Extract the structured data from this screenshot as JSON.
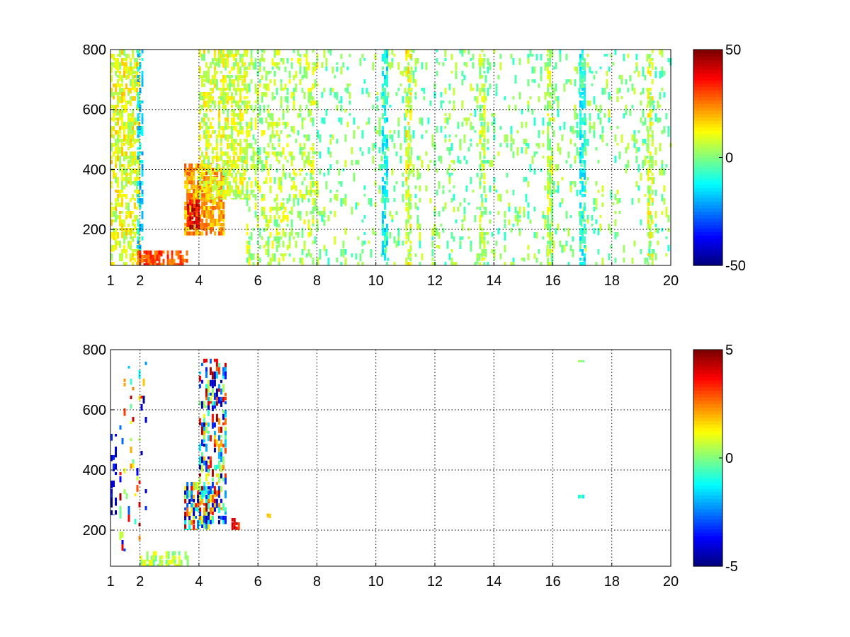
{
  "chart_data": [
    {
      "type": "heatmap",
      "title": "",
      "xlabel": "",
      "ylabel": "",
      "xlim": [
        1,
        20
      ],
      "ylim": [
        80,
        800
      ],
      "x_ticks": [
        1,
        2,
        4,
        6,
        8,
        10,
        12,
        14,
        16,
        18,
        20
      ],
      "x_tick_labels": [
        "1",
        "2",
        "4",
        "6",
        "8",
        "10",
        "12",
        "14",
        "16",
        "18",
        "20"
      ],
      "y_ticks": [
        200,
        400,
        600,
        800
      ],
      "y_tick_labels": [
        "200",
        "400",
        "600",
        "800"
      ],
      "grid": true,
      "colormap": "jet",
      "colorbar": {
        "range": [
          -50,
          50
        ],
        "ticks": [
          -50,
          0,
          50
        ],
        "tick_labels": [
          "-50",
          "0",
          "50"
        ],
        "placement": "right"
      },
      "background": "#ffffff",
      "sparse": true,
      "features": [
        {
          "x": [
            1.0,
            2.0
          ],
          "y": [
            80,
            800
          ],
          "value": 10,
          "density": 0.55
        },
        {
          "x": [
            1.9,
            2.1
          ],
          "y": [
            80,
            800
          ],
          "value": -15,
          "density": 0.45
        },
        {
          "x": [
            1.9,
            3.6
          ],
          "y": [
            80,
            130
          ],
          "value": 30,
          "density": 0.7
        },
        {
          "x": [
            3.5,
            4.8
          ],
          "y": [
            180,
            420
          ],
          "value": 22,
          "density": 0.75
        },
        {
          "x": [
            3.6,
            4.0
          ],
          "y": [
            200,
            300
          ],
          "value": 40,
          "density": 0.8
        },
        {
          "x": [
            4.0,
            5.6
          ],
          "y": [
            300,
            800
          ],
          "value": 8,
          "density": 0.55
        },
        {
          "x": [
            5.6,
            8.0
          ],
          "y": [
            80,
            800
          ],
          "value": 5,
          "density": 0.28
        },
        {
          "x": [
            8.0,
            20.0
          ],
          "y": [
            80,
            800
          ],
          "value": 0,
          "density": 0.12
        },
        {
          "x": [
            10.2,
            10.4
          ],
          "y": [
            80,
            800
          ],
          "value": -10,
          "density": 0.6
        },
        {
          "x": [
            11.0,
            11.15
          ],
          "y": [
            80,
            800
          ],
          "value": 10,
          "density": 0.6
        },
        {
          "x": [
            13.5,
            13.7
          ],
          "y": [
            80,
            800
          ],
          "value": 5,
          "density": 0.5
        },
        {
          "x": [
            15.8,
            15.95
          ],
          "y": [
            80,
            800
          ],
          "value": 5,
          "density": 0.55
        },
        {
          "x": [
            16.9,
            17.1
          ],
          "y": [
            80,
            800
          ],
          "value": -10,
          "density": 0.65
        },
        {
          "x": [
            19.2,
            19.35
          ],
          "y": [
            80,
            800
          ],
          "value": 8,
          "density": 0.45
        }
      ]
    },
    {
      "type": "heatmap",
      "title": "",
      "xlabel": "",
      "ylabel": "",
      "xlim": [
        1,
        20
      ],
      "ylim": [
        80,
        800
      ],
      "x_ticks": [
        1,
        2,
        4,
        6,
        8,
        10,
        12,
        14,
        16,
        18,
        20
      ],
      "x_tick_labels": [
        "1",
        "2",
        "4",
        "6",
        "8",
        "10",
        "12",
        "14",
        "16",
        "18",
        "20"
      ],
      "y_ticks": [
        200,
        400,
        600,
        800
      ],
      "y_tick_labels": [
        "200",
        "400",
        "600",
        "800"
      ],
      "grid": true,
      "colormap": "jet",
      "colorbar": {
        "range": [
          -5,
          5
        ],
        "ticks": [
          -5,
          0,
          5
        ],
        "tick_labels": [
          "-5",
          "0",
          "5"
        ],
        "placement": "right"
      },
      "background": "#ffffff",
      "sparse": true,
      "features": [
        {
          "x": [
            1.0,
            1.15
          ],
          "y": [
            250,
            520
          ],
          "value": -4,
          "density": 0.35
        },
        {
          "x": [
            1.3,
            2.2
          ],
          "y": [
            90,
            760
          ],
          "value": 0,
          "density": 0.1,
          "mixed": true
        },
        {
          "x": [
            2.0,
            3.6
          ],
          "y": [
            80,
            130
          ],
          "value": 0.5,
          "density": 0.45
        },
        {
          "x": [
            3.5,
            4.3
          ],
          "y": [
            200,
            360
          ],
          "value": 0,
          "density": 0.6,
          "mixed": true
        },
        {
          "x": [
            4.0,
            4.9
          ],
          "y": [
            220,
            770
          ],
          "value": 0,
          "density": 0.45,
          "mixed": true
        },
        {
          "x": [
            5.1,
            5.35
          ],
          "y": [
            200,
            240
          ],
          "value": 4,
          "density": 0.7
        },
        {
          "x": [
            6.3,
            6.4
          ],
          "y": [
            240,
            255
          ],
          "value": 2,
          "density": 1
        },
        {
          "x": [
            16.85,
            17.05
          ],
          "y": [
            305,
            318
          ],
          "value": -1,
          "density": 1
        },
        {
          "x": [
            16.85,
            17.05
          ],
          "y": [
            758,
            765
          ],
          "value": 0,
          "density": 1
        }
      ]
    }
  ]
}
